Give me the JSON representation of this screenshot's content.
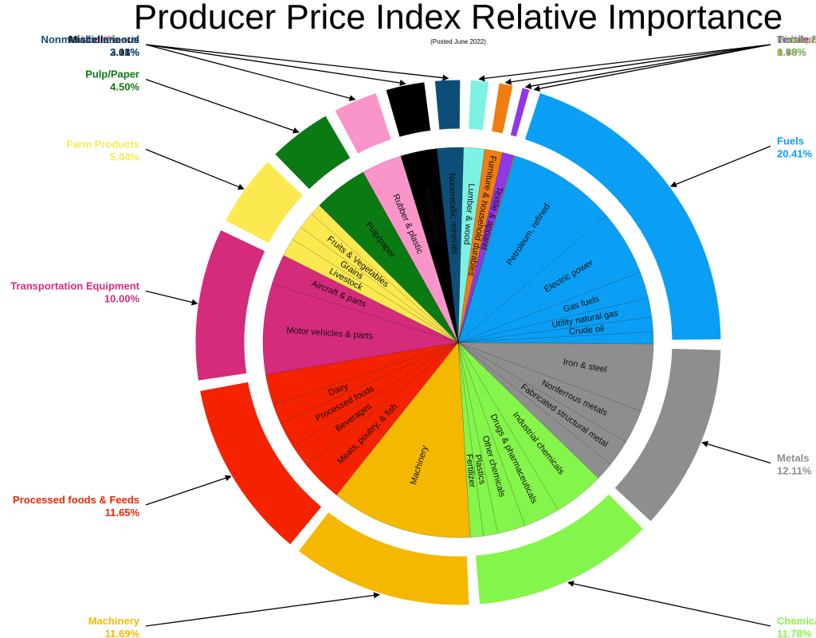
{
  "chart_data": {
    "type": "pie",
    "title": "Producer Price Index Relative Importance",
    "subtitle": "(Posted June 2022)",
    "series": [
      {
        "name": "Fuels",
        "value_label": "20.41%",
        "value": 20.41,
        "color": "#0a9ff5",
        "subs": [
          {
            "label": "Petroleum, refined",
            "value": 9.0
          },
          {
            "label": "Electric power",
            "value": 5.4
          },
          {
            "label": "Gas fuels",
            "value": 2.2
          },
          {
            "label": "Utility natural gas",
            "value": 1.6
          },
          {
            "label": "Crude oil",
            "value": 1.2
          },
          {
            "label": "",
            "value": 1.01
          }
        ]
      },
      {
        "name": "Metals",
        "value_label": "12.11%",
        "value": 12.11,
        "color": "#8e8e8e",
        "subs": [
          {
            "label": "Iron & steel",
            "value": 5.6
          },
          {
            "label": "Nonferrous metals",
            "value": 2.8
          },
          {
            "label": "Fabricated structural metal",
            "value": 2.2
          },
          {
            "label": "",
            "value": 1.51
          }
        ]
      },
      {
        "name": "Chemicals",
        "value_label": "11.78%",
        "value": 11.78,
        "color": "#84f54a",
        "subs": [
          {
            "label": "Industrial chemicals",
            "value": 4.2
          },
          {
            "label": "Drugs & pharmaceuticals",
            "value": 3.0
          },
          {
            "label": "Other chemicals",
            "value": 2.3
          },
          {
            "label": "Plastics",
            "value": 1.2
          },
          {
            "label": "Fertilizer",
            "value": 1.08
          }
        ]
      },
      {
        "name": "Machinery",
        "value_label": "11.69%",
        "value": 11.69,
        "color": "#f5b800",
        "subs": [
          {
            "label": "Machinery",
            "value": 11.69
          }
        ]
      },
      {
        "name": "Processed foods & Feeds",
        "value_label": "11.65%",
        "value": 11.65,
        "color": "#f52200",
        "subs": [
          {
            "label": "Meats, poultry, & fish",
            "value": 3.4
          },
          {
            "label": "Beverages",
            "value": 1.9
          },
          {
            "label": "Processed foods",
            "value": 2.2
          },
          {
            "label": "Dairy",
            "value": 1.6
          },
          {
            "label": "",
            "value": 2.55
          }
        ]
      },
      {
        "name": "Transportation Equipment",
        "value_label": "10.00%",
        "value": 10.0,
        "color": "#d42b7a",
        "subs": [
          {
            "label": "Motor vehicles & parts",
            "value": 7.5
          },
          {
            "label": "Aircraft & parts",
            "value": 2.5
          }
        ]
      },
      {
        "name": "Farm Products",
        "value_label": "5.04%",
        "value": 5.04,
        "color": "#fbe94f",
        "subs": [
          {
            "label": "Livestock",
            "value": 1.5
          },
          {
            "label": "Grains",
            "value": 1.2
          },
          {
            "label": "Fruits & Vegetables",
            "value": 1.4
          },
          {
            "label": "",
            "value": 0.94
          }
        ]
      },
      {
        "name": "Pulp/Paper",
        "value_label": "4.50%",
        "value": 4.5,
        "color": "#0a7a12",
        "subs": [
          {
            "label": "Pulp/paper",
            "value": 4.5
          }
        ]
      },
      {
        "name": "Rubber/Plastic",
        "value_label": "3.35%",
        "value": 3.35,
        "color": "#f995c9",
        "subs": [
          {
            "label": "Rubber & plastic",
            "value": 3.35
          }
        ]
      },
      {
        "name": "Miscellaneous",
        "value_label": "3.01%",
        "value": 3.01,
        "color": "#000000",
        "subs": [
          {
            "label": "Miscellaneous",
            "value": 3.01
          }
        ]
      },
      {
        "name": "Nonmetallic mineral",
        "value_label": "2.18%",
        "value": 2.18,
        "color": "#0d4e78",
        "subs": [
          {
            "label": "Nonmetallic minerals",
            "value": 2.18
          }
        ]
      },
      {
        "name": "Lumber/Wood",
        "value_label": "1.73%",
        "value": 1.73,
        "color": "#7df2e3",
        "subs": [
          {
            "label": "Lumber & wood",
            "value": 1.73
          }
        ]
      },
      {
        "name": "Funature/Household Durables",
        "value_label": "1.49%",
        "value": 1.49,
        "color": "#f07d10",
        "subs": [
          {
            "label": "Furniture & household durables",
            "value": 1.49
          }
        ]
      },
      {
        "name": "Textile / Apparel",
        "value_label": "0.98%",
        "value": 0.98,
        "color": "#9137e8",
        "subs": [
          {
            "label": "Textile & apparel",
            "value": 0.98
          }
        ]
      },
      {
        "name": "Hides, Skins, leathers",
        "value_label": "0.08%",
        "value": 0.08,
        "color": "#7bbf62",
        "subs": [
          {
            "label": "",
            "value": 0.08
          }
        ]
      }
    ]
  }
}
